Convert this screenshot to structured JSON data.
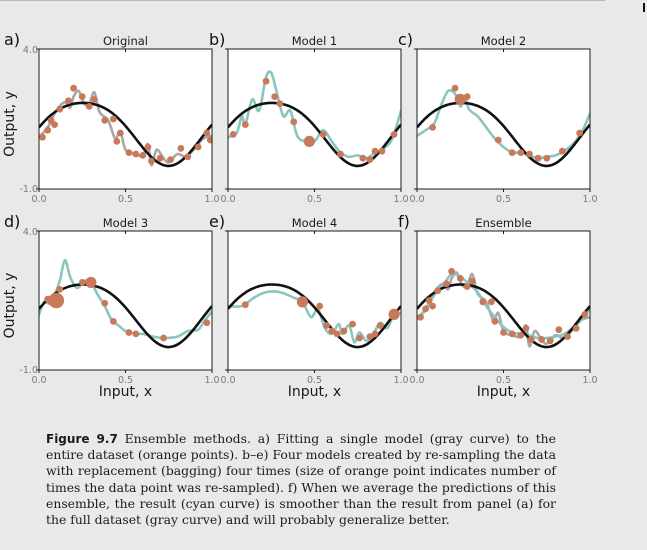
{
  "caption": {
    "figure_label": "Figure 9.7",
    "text": "Ensemble methods. a) Fitting a single model (gray curve) to the entire dataset (orange points). b–e) Four models created by re-sampling the data with replacement (bagging) four times (size of orange point indicates number of times the data point was re-sampled). f) When we average the predictions of this ensemble, the result (cyan curve) is smoother than the result from panel (a) for the full dataset (gray curve) and will probably generalize better."
  },
  "axes": {
    "ylabel": "Output, y",
    "xlabel": "Input, x",
    "xlim": [
      0.0,
      1.0
    ],
    "ylim": [
      -1.0,
      4.0
    ],
    "x_ticks": [
      "0.0",
      "0.5",
      "1.0"
    ],
    "y_ticks": [
      "4.0",
      "-1.0"
    ]
  },
  "colors": {
    "true_function": "#111111",
    "gray_fit": "#a8a8a8",
    "cyan_fit": "#8ac6bd",
    "points": "#c8795a",
    "panel_bg": "#ffffff",
    "page_bg": "#e9e9e9"
  },
  "chart_data": [
    {
      "type": "scatter",
      "panel": "a)",
      "title": "Original",
      "fit_color": "gray",
      "points": [
        {
          "x": 0.02,
          "y": 0.85,
          "n": 1
        },
        {
          "x": 0.05,
          "y": 1.1,
          "n": 1
        },
        {
          "x": 0.07,
          "y": 1.45,
          "n": 1
        },
        {
          "x": 0.09,
          "y": 1.3,
          "n": 1
        },
        {
          "x": 0.12,
          "y": 1.85,
          "n": 1
        },
        {
          "x": 0.17,
          "y": 2.15,
          "n": 1
        },
        {
          "x": 0.2,
          "y": 2.6,
          "n": 1
        },
        {
          "x": 0.25,
          "y": 2.3,
          "n": 1
        },
        {
          "x": 0.29,
          "y": 1.95,
          "n": 1
        },
        {
          "x": 0.32,
          "y": 2.2,
          "n": 1
        },
        {
          "x": 0.38,
          "y": 1.45,
          "n": 1
        },
        {
          "x": 0.43,
          "y": 1.5,
          "n": 1
        },
        {
          "x": 0.45,
          "y": 0.7,
          "n": 1
        },
        {
          "x": 0.47,
          "y": 1.0,
          "n": 1
        },
        {
          "x": 0.52,
          "y": 0.3,
          "n": 1
        },
        {
          "x": 0.56,
          "y": 0.25,
          "n": 1
        },
        {
          "x": 0.6,
          "y": 0.2,
          "n": 1
        },
        {
          "x": 0.63,
          "y": 0.5,
          "n": 1
        },
        {
          "x": 0.65,
          "y": 0.0,
          "n": 1
        },
        {
          "x": 0.7,
          "y": 0.1,
          "n": 1
        },
        {
          "x": 0.76,
          "y": 0.05,
          "n": 1
        },
        {
          "x": 0.82,
          "y": 0.45,
          "n": 1
        },
        {
          "x": 0.86,
          "y": 0.15,
          "n": 1
        },
        {
          "x": 0.92,
          "y": 0.5,
          "n": 1
        },
        {
          "x": 0.97,
          "y": 1.0,
          "n": 1
        },
        {
          "x": 0.99,
          "y": 0.75,
          "n": 1
        }
      ],
      "fit_curve": [
        [
          0.0,
          0.85
        ],
        [
          0.05,
          1.2
        ],
        [
          0.1,
          1.8
        ],
        [
          0.15,
          2.1
        ],
        [
          0.18,
          1.9
        ],
        [
          0.2,
          2.3
        ],
        [
          0.23,
          2.5
        ],
        [
          0.26,
          2.05
        ],
        [
          0.29,
          2.05
        ],
        [
          0.32,
          2.45
        ],
        [
          0.35,
          1.75
        ],
        [
          0.4,
          1.45
        ],
        [
          0.44,
          0.8
        ],
        [
          0.47,
          1.05
        ],
        [
          0.5,
          0.4
        ],
        [
          0.55,
          0.25
        ],
        [
          0.6,
          0.2
        ],
        [
          0.63,
          0.6
        ],
        [
          0.65,
          -0.15
        ],
        [
          0.68,
          0.4
        ],
        [
          0.72,
          0.1
        ],
        [
          0.75,
          -0.05
        ],
        [
          0.8,
          0.25
        ],
        [
          0.85,
          0.15
        ],
        [
          0.9,
          0.45
        ],
        [
          0.95,
          0.8
        ],
        [
          1.0,
          0.9
        ]
      ]
    },
    {
      "type": "scatter",
      "panel": "b)",
      "title": "Model 1",
      "fit_color": "cyan",
      "points": [
        {
          "x": 0.03,
          "y": 0.95,
          "n": 1
        },
        {
          "x": 0.1,
          "y": 1.3,
          "n": 1
        },
        {
          "x": 0.22,
          "y": 2.85,
          "n": 1
        },
        {
          "x": 0.27,
          "y": 2.3,
          "n": 1
        },
        {
          "x": 0.3,
          "y": 2.05,
          "n": 1
        },
        {
          "x": 0.38,
          "y": 1.4,
          "n": 1
        },
        {
          "x": 0.47,
          "y": 0.7,
          "n": 2
        },
        {
          "x": 0.55,
          "y": 0.95,
          "n": 1
        },
        {
          "x": 0.65,
          "y": 0.25,
          "n": 1
        },
        {
          "x": 0.78,
          "y": 0.1,
          "n": 1
        },
        {
          "x": 0.82,
          "y": 0.05,
          "n": 1
        },
        {
          "x": 0.85,
          "y": 0.35,
          "n": 1
        },
        {
          "x": 0.89,
          "y": 0.35,
          "n": 1
        },
        {
          "x": 0.96,
          "y": 0.95,
          "n": 1
        }
      ],
      "fit_curve": [
        [
          0.0,
          0.85
        ],
        [
          0.05,
          1.0
        ],
        [
          0.08,
          1.6
        ],
        [
          0.1,
          1.3
        ],
        [
          0.14,
          2.2
        ],
        [
          0.18,
          1.8
        ],
        [
          0.22,
          3.0
        ],
        [
          0.25,
          3.15
        ],
        [
          0.28,
          2.5
        ],
        [
          0.32,
          1.6
        ],
        [
          0.36,
          1.8
        ],
        [
          0.4,
          0.9
        ],
        [
          0.45,
          0.7
        ],
        [
          0.5,
          0.7
        ],
        [
          0.55,
          1.1
        ],
        [
          0.6,
          0.7
        ],
        [
          0.65,
          0.3
        ],
        [
          0.7,
          0.15
        ],
        [
          0.75,
          0.2
        ],
        [
          0.8,
          0.1
        ],
        [
          0.85,
          0.3
        ],
        [
          0.9,
          0.45
        ],
        [
          0.95,
          0.8
        ],
        [
          1.0,
          1.8
        ]
      ]
    },
    {
      "type": "scatter",
      "panel": "c)",
      "title": "Model 2",
      "fit_color": "cyan",
      "points": [
        {
          "x": 0.09,
          "y": 1.2,
          "n": 1
        },
        {
          "x": 0.22,
          "y": 2.6,
          "n": 1
        },
        {
          "x": 0.25,
          "y": 2.2,
          "n": 2
        },
        {
          "x": 0.29,
          "y": 2.3,
          "n": 1
        },
        {
          "x": 0.47,
          "y": 0.75,
          "n": 1
        },
        {
          "x": 0.55,
          "y": 0.3,
          "n": 1
        },
        {
          "x": 0.6,
          "y": 0.3,
          "n": 1
        },
        {
          "x": 0.65,
          "y": 0.25,
          "n": 1
        },
        {
          "x": 0.7,
          "y": 0.1,
          "n": 1
        },
        {
          "x": 0.75,
          "y": 0.1,
          "n": 1
        },
        {
          "x": 0.84,
          "y": 0.35,
          "n": 1
        },
        {
          "x": 0.94,
          "y": 1.0,
          "n": 1
        }
      ],
      "fit_curve": [
        [
          0.0,
          0.9
        ],
        [
          0.05,
          1.1
        ],
        [
          0.1,
          1.35
        ],
        [
          0.14,
          2.0
        ],
        [
          0.18,
          2.5
        ],
        [
          0.22,
          2.4
        ],
        [
          0.25,
          1.95
        ],
        [
          0.28,
          2.25
        ],
        [
          0.3,
          1.85
        ],
        [
          0.35,
          1.6
        ],
        [
          0.4,
          1.2
        ],
        [
          0.45,
          0.8
        ],
        [
          0.5,
          0.5
        ],
        [
          0.55,
          0.3
        ],
        [
          0.6,
          0.3
        ],
        [
          0.65,
          0.2
        ],
        [
          0.7,
          0.1
        ],
        [
          0.75,
          0.15
        ],
        [
          0.8,
          0.2
        ],
        [
          0.85,
          0.35
        ],
        [
          0.9,
          0.6
        ],
        [
          0.95,
          1.0
        ],
        [
          1.0,
          1.7
        ]
      ]
    },
    {
      "type": "scatter",
      "panel": "d)",
      "title": "Model 3",
      "fit_color": "cyan",
      "points": [
        {
          "x": 0.05,
          "y": 1.55,
          "n": 1
        },
        {
          "x": 0.08,
          "y": 1.5,
          "n": 2
        },
        {
          "x": 0.1,
          "y": 1.5,
          "n": 3
        },
        {
          "x": 0.12,
          "y": 1.9,
          "n": 1
        },
        {
          "x": 0.25,
          "y": 2.15,
          "n": 1
        },
        {
          "x": 0.3,
          "y": 2.15,
          "n": 2
        },
        {
          "x": 0.38,
          "y": 1.4,
          "n": 1
        },
        {
          "x": 0.43,
          "y": 0.75,
          "n": 1
        },
        {
          "x": 0.52,
          "y": 0.35,
          "n": 1
        },
        {
          "x": 0.56,
          "y": 0.3,
          "n": 1
        },
        {
          "x": 0.72,
          "y": 0.15,
          "n": 1
        },
        {
          "x": 0.97,
          "y": 0.7,
          "n": 1
        }
      ],
      "fit_curve": [
        [
          0.0,
          1.0
        ],
        [
          0.03,
          1.45
        ],
        [
          0.06,
          1.4
        ],
        [
          0.09,
          1.7
        ],
        [
          0.12,
          2.2
        ],
        [
          0.15,
          2.95
        ],
        [
          0.18,
          2.35
        ],
        [
          0.22,
          1.95
        ],
        [
          0.26,
          2.2
        ],
        [
          0.3,
          2.15
        ],
        [
          0.34,
          1.7
        ],
        [
          0.38,
          1.3
        ],
        [
          0.42,
          0.8
        ],
        [
          0.46,
          0.6
        ],
        [
          0.5,
          0.4
        ],
        [
          0.56,
          0.3
        ],
        [
          0.6,
          0.3
        ],
        [
          0.66,
          0.2
        ],
        [
          0.72,
          0.15
        ],
        [
          0.8,
          0.2
        ],
        [
          0.86,
          0.4
        ],
        [
          0.92,
          0.45
        ],
        [
          0.96,
          0.8
        ],
        [
          1.0,
          1.1
        ]
      ]
    },
    {
      "type": "scatter",
      "panel": "e)",
      "title": "Model 4",
      "fit_color": "cyan",
      "points": [
        {
          "x": 0.1,
          "y": 1.35,
          "n": 1
        },
        {
          "x": 0.43,
          "y": 1.45,
          "n": 2
        },
        {
          "x": 0.53,
          "y": 1.3,
          "n": 1
        },
        {
          "x": 0.57,
          "y": 0.6,
          "n": 1
        },
        {
          "x": 0.6,
          "y": 0.4,
          "n": 1
        },
        {
          "x": 0.63,
          "y": 0.3,
          "n": 1
        },
        {
          "x": 0.67,
          "y": 0.4,
          "n": 1
        },
        {
          "x": 0.72,
          "y": 0.65,
          "n": 1
        },
        {
          "x": 0.76,
          "y": 0.15,
          "n": 1
        },
        {
          "x": 0.82,
          "y": 0.2,
          "n": 1
        },
        {
          "x": 0.85,
          "y": 0.3,
          "n": 1
        },
        {
          "x": 0.88,
          "y": 0.6,
          "n": 1
        },
        {
          "x": 0.96,
          "y": 1.0,
          "n": 2
        }
      ],
      "fit_curve": [
        [
          0.0,
          1.3
        ],
        [
          0.08,
          1.3
        ],
        [
          0.15,
          1.6
        ],
        [
          0.22,
          1.8
        ],
        [
          0.3,
          1.8
        ],
        [
          0.38,
          1.6
        ],
        [
          0.43,
          1.45
        ],
        [
          0.48,
          0.9
        ],
        [
          0.52,
          1.2
        ],
        [
          0.56,
          0.5
        ],
        [
          0.6,
          0.3
        ],
        [
          0.64,
          0.65
        ],
        [
          0.66,
          0.3
        ],
        [
          0.7,
          0.6
        ],
        [
          0.73,
          0.0
        ],
        [
          0.76,
          0.35
        ],
        [
          0.8,
          0.05
        ],
        [
          0.84,
          0.3
        ],
        [
          0.88,
          0.7
        ],
        [
          0.92,
          0.5
        ],
        [
          0.96,
          1.0
        ],
        [
          1.0,
          1.05
        ]
      ]
    },
    {
      "type": "scatter",
      "panel": "f)",
      "title": "Ensemble",
      "fit_color": "cyan_and_gray",
      "points": [
        {
          "x": 0.02,
          "y": 0.9,
          "n": 1
        },
        {
          "x": 0.05,
          "y": 1.2,
          "n": 1
        },
        {
          "x": 0.07,
          "y": 1.5,
          "n": 1
        },
        {
          "x": 0.09,
          "y": 1.3,
          "n": 1
        },
        {
          "x": 0.12,
          "y": 1.85,
          "n": 1
        },
        {
          "x": 0.17,
          "y": 2.1,
          "n": 1
        },
        {
          "x": 0.2,
          "y": 2.55,
          "n": 1
        },
        {
          "x": 0.25,
          "y": 2.3,
          "n": 1
        },
        {
          "x": 0.29,
          "y": 2.0,
          "n": 1
        },
        {
          "x": 0.32,
          "y": 2.2,
          "n": 1
        },
        {
          "x": 0.38,
          "y": 1.45,
          "n": 1
        },
        {
          "x": 0.43,
          "y": 1.45,
          "n": 1
        },
        {
          "x": 0.45,
          "y": 0.75,
          "n": 1
        },
        {
          "x": 0.5,
          "y": 0.35,
          "n": 1
        },
        {
          "x": 0.55,
          "y": 0.3,
          "n": 1
        },
        {
          "x": 0.6,
          "y": 0.25,
          "n": 1
        },
        {
          "x": 0.63,
          "y": 0.5,
          "n": 1
        },
        {
          "x": 0.66,
          "y": 0.1,
          "n": 1
        },
        {
          "x": 0.72,
          "y": 0.1,
          "n": 1
        },
        {
          "x": 0.77,
          "y": 0.05,
          "n": 1
        },
        {
          "x": 0.82,
          "y": 0.45,
          "n": 1
        },
        {
          "x": 0.87,
          "y": 0.2,
          "n": 1
        },
        {
          "x": 0.92,
          "y": 0.5,
          "n": 1
        },
        {
          "x": 0.97,
          "y": 1.0,
          "n": 1
        }
      ],
      "fit_curve": [
        [
          0.0,
          0.85
        ],
        [
          0.05,
          1.15
        ],
        [
          0.1,
          1.7
        ],
        [
          0.15,
          2.05
        ],
        [
          0.2,
          2.45
        ],
        [
          0.25,
          2.35
        ],
        [
          0.3,
          2.1
        ],
        [
          0.35,
          1.8
        ],
        [
          0.4,
          1.3
        ],
        [
          0.45,
          0.9
        ],
        [
          0.5,
          0.55
        ],
        [
          0.55,
          0.35
        ],
        [
          0.6,
          0.3
        ],
        [
          0.65,
          0.25
        ],
        [
          0.7,
          0.15
        ],
        [
          0.75,
          0.15
        ],
        [
          0.8,
          0.2
        ],
        [
          0.85,
          0.3
        ],
        [
          0.9,
          0.5
        ],
        [
          0.95,
          0.8
        ],
        [
          1.0,
          1.2
        ]
      ]
    }
  ]
}
